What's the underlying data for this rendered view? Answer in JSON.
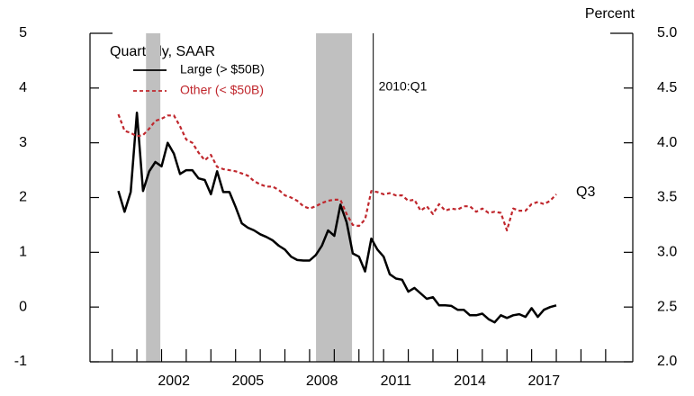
{
  "chart_data": {
    "type": "line",
    "y2_label": "Percent",
    "legend_title": "Quarterly, SAAR",
    "annotations": [
      {
        "text": "2010:Q1",
        "x": 2010.08
      },
      {
        "text": "Q3",
        "x": 2017.5,
        "y": 3.53,
        "axis": "y2"
      }
    ],
    "shaded_periods": [
      [
        2000.87,
        2001.45
      ],
      [
        2007.76,
        2009.22
      ]
    ],
    "x": [
      1999.75,
      2000,
      2000.25,
      2000.5,
      2000.75,
      2001,
      2001.25,
      2001.5,
      2001.75,
      2002,
      2002.25,
      2002.5,
      2002.75,
      2003,
      2003.25,
      2003.5,
      2003.75,
      2004,
      2004.25,
      2004.5,
      2004.75,
      2005,
      2005.25,
      2005.5,
      2005.75,
      2006,
      2006.25,
      2006.5,
      2006.75,
      2007,
      2007.25,
      2007.5,
      2007.75,
      2008,
      2008.25,
      2008.5,
      2008.75,
      2009,
      2009.25,
      2009.5,
      2009.75,
      2010,
      2010.25,
      2010.5,
      2010.75,
      2011,
      2011.25,
      2011.5,
      2011.75,
      2012,
      2012.25,
      2012.5,
      2012.75,
      2013,
      2013.25,
      2013.5,
      2013.75,
      2014,
      2014.25,
      2014.5,
      2014.75,
      2015,
      2015.25,
      2015.5,
      2015.75,
      2016,
      2016.25,
      2016.5,
      2016.75,
      2017,
      2017.25,
      2017.5
    ],
    "series": [
      {
        "name": "Large (> $50B)",
        "color": "#000000",
        "dash": "solid",
        "values": [
          2.12,
          1.74,
          2.1,
          3.55,
          2.12,
          2.48,
          2.65,
          2.57,
          3.0,
          2.8,
          2.43,
          2.5,
          2.5,
          2.35,
          2.32,
          2.06,
          2.48,
          2.1,
          2.1,
          1.83,
          1.53,
          1.45,
          1.4,
          1.33,
          1.28,
          1.22,
          1.12,
          1.05,
          0.92,
          0.86,
          0.85,
          0.85,
          0.95,
          1.12,
          1.4,
          1.3,
          1.87,
          1.55,
          0.98,
          0.92,
          0.65,
          1.25,
          1.05,
          0.92,
          0.6,
          0.52,
          0.5,
          0.28,
          0.35,
          0.25,
          0.15,
          0.18,
          0.03,
          0.03,
          0.02,
          -0.05,
          -0.05,
          -0.15,
          -0.15,
          -0.12,
          -0.22,
          -0.28,
          -0.15,
          -0.2,
          -0.15,
          -0.13,
          -0.18,
          -0.02,
          -0.18,
          -0.05,
          0,
          0.03
        ]
      },
      {
        "name": "Other (< $50B)",
        "color": "#c0272d",
        "dash": "dotted",
        "axis": "y2",
        "values": [
          4.26,
          4.11,
          4.09,
          4.06,
          4.07,
          4.13,
          4.2,
          4.22,
          4.25,
          4.25,
          4.15,
          4.03,
          4.0,
          3.91,
          3.84,
          3.89,
          3.78,
          3.76,
          3.75,
          3.74,
          3.72,
          3.7,
          3.65,
          3.62,
          3.6,
          3.6,
          3.57,
          3.52,
          3.5,
          3.47,
          3.42,
          3.4,
          3.42,
          3.45,
          3.47,
          3.48,
          3.48,
          3.35,
          3.25,
          3.24,
          3.3,
          3.56,
          3.55,
          3.53,
          3.54,
          3.52,
          3.52,
          3.47,
          3.48,
          3.38,
          3.42,
          3.35,
          3.44,
          3.38,
          3.4,
          3.39,
          3.42,
          3.42,
          3.37,
          3.4,
          3.36,
          3.37,
          3.36,
          3.2,
          3.4,
          3.38,
          3.38,
          3.44,
          3.46,
          3.44,
          3.47,
          3.53
        ]
      }
    ],
    "xlim": [
      1998.6,
      2020.6
    ],
    "xticks": [
      2002,
      2005,
      2008,
      2011,
      2014,
      2017
    ],
    "xminorticks": [
      1999.5,
      2000.5,
      2001.5,
      2002.5,
      2003.5,
      2004.5,
      2005.5,
      2006.5,
      2007.5,
      2008.5,
      2009.5,
      2010.5,
      2011.5,
      2012.5,
      2013.5,
      2014.5,
      2015.5,
      2016.5,
      2017.5,
      2018.5,
      2019.5
    ],
    "ylim": [
      -1,
      5
    ],
    "yticks": [
      -1,
      0,
      1,
      2,
      3,
      4,
      5
    ],
    "y2lim": [
      2,
      5
    ],
    "y2ticks": [
      {
        "value": 2,
        "label": "2.0"
      },
      {
        "value": 2.5,
        "label": "2.5"
      },
      {
        "value": 3,
        "label": "3.0"
      },
      {
        "value": 3.5,
        "label": "3.5"
      },
      {
        "value": 4,
        "label": "4.0"
      },
      {
        "value": 4.5,
        "label": "4.5"
      },
      {
        "value": 5,
        "label": "5.0"
      }
    ]
  }
}
